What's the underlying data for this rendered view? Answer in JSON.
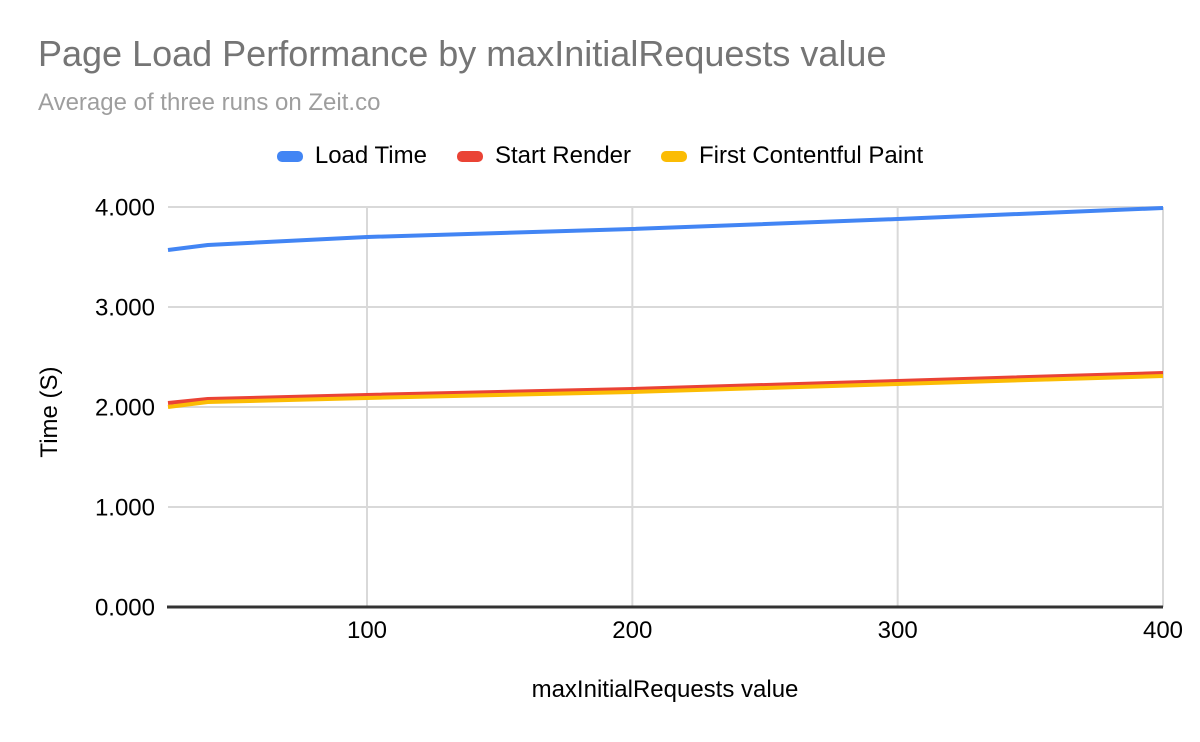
{
  "chart_data": {
    "type": "line",
    "title": "Page Load Performance by maxInitialRequests value",
    "subtitle": "Average of three runs on Zeit.co",
    "xlabel": "maxInitialRequests value",
    "ylabel": "Time (S)",
    "x": [
      25,
      40,
      100,
      200,
      300,
      400
    ],
    "series": [
      {
        "name": "Load Time",
        "color": "#4285f4",
        "values": [
          3.57,
          3.62,
          3.7,
          3.78,
          3.88,
          3.99
        ]
      },
      {
        "name": "Start Render",
        "color": "#ea4335",
        "values": [
          2.04,
          2.08,
          2.12,
          2.18,
          2.26,
          2.34
        ]
      },
      {
        "name": "First Contentful Paint",
        "color": "#fbbc04",
        "values": [
          2.0,
          2.05,
          2.09,
          2.15,
          2.23,
          2.31
        ]
      }
    ],
    "xlim": [
      25,
      400
    ],
    "ylim": [
      0,
      4
    ],
    "x_ticks": [
      100,
      200,
      300,
      400
    ],
    "x_tick_labels": [
      "100",
      "200",
      "300",
      "400"
    ],
    "y_ticks": [
      0,
      1,
      2,
      3,
      4
    ],
    "y_tick_labels": [
      "0.000",
      "1.000",
      "2.000",
      "3.000",
      "4.000"
    ],
    "grid": true,
    "legend_position": "top",
    "colors": {
      "title_text": "#757575",
      "subtitle_text": "#9e9e9e",
      "tick_text": "#000000",
      "axis_title_text": "#000000",
      "legend_text": "#000000",
      "grid": "#d9d9d9",
      "axis_line": "#333333",
      "background": "#ffffff"
    }
  }
}
